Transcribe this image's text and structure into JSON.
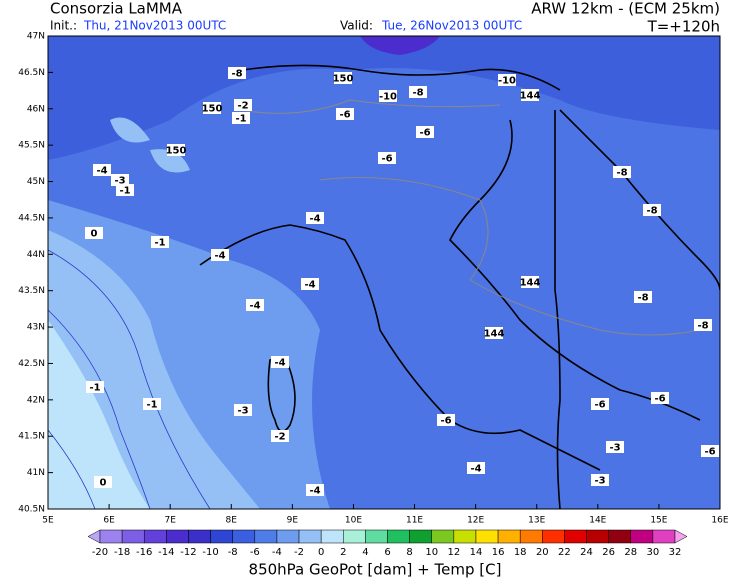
{
  "header": {
    "title": "Consorzia LaMMA",
    "init_label": "Init.:",
    "init_time": "Thu, 21Nov2013 00UTC",
    "valid_label": "Valid:",
    "valid_time": "Tue, 26Nov2013 00UTC",
    "model": "ARW 12km - (ECM 25km)",
    "lead_time": "T=+120h"
  },
  "map": {
    "lat_labels": [
      "47N",
      "46.5N",
      "46N",
      "45.5N",
      "45N",
      "44.5N",
      "44N",
      "43.5N",
      "43N",
      "42.5N",
      "42N",
      "41.5N",
      "41N",
      "40.5N"
    ],
    "lon_labels": [
      "5E",
      "6E",
      "7E",
      "8E",
      "9E",
      "10E",
      "11E",
      "12E",
      "13E",
      "14E",
      "15E",
      "16E"
    ],
    "contour_labels": [
      "-8",
      "150",
      "-10",
      "144",
      "-10",
      "-8",
      "-6",
      "-6",
      "-6",
      "150",
      "-2",
      "-1",
      "150",
      "-4",
      "-3",
      "-1",
      "-1",
      "-4",
      "-4",
      "-4",
      "-4",
      "-4",
      "-3",
      "-2",
      "-1",
      "-1",
      "0",
      "-4",
      "144",
      "144",
      "-6",
      "-4",
      "-8",
      "-8",
      "-8",
      "-8",
      "-6",
      "-6",
      "-3",
      "-6",
      "-3",
      "0"
    ]
  },
  "colorbar": {
    "labels": [
      "-20",
      "-18",
      "-16",
      "-14",
      "-12",
      "-10",
      "-8",
      "-6",
      "-4",
      "-2",
      "0",
      "2",
      "4",
      "6",
      "8",
      "10",
      "12",
      "14",
      "16",
      "18",
      "20",
      "22",
      "24",
      "26",
      "28",
      "30",
      "32"
    ],
    "colors": [
      "#b9a6f5",
      "#9b82ee",
      "#7d5fe6",
      "#6340da",
      "#4b2ccc",
      "#3a2fc8",
      "#2f45d4",
      "#3a5fe0",
      "#4f7de8",
      "#6e9df0",
      "#94c0f6",
      "#bde4fa",
      "#a8f0d8",
      "#5fdca0",
      "#20c060",
      "#10a030",
      "#7cc820",
      "#c8e000",
      "#ffe000",
      "#ffb000",
      "#ff7a00",
      "#ff3000",
      "#e00000",
      "#b80000",
      "#900010",
      "#c00080",
      "#e040c0",
      "#f8a0f0"
    ],
    "caption": "850hPa GeoPot [dam] + Temp [C]"
  }
}
